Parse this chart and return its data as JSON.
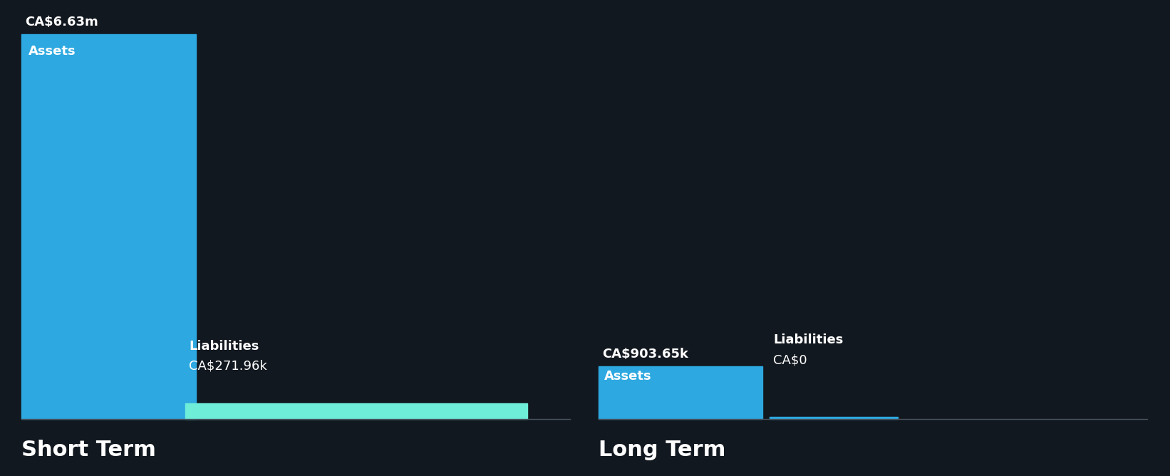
{
  "background_color": "#12181f",
  "short_term": {
    "assets_value": 6630000,
    "assets_label": "CA$6.63m",
    "assets_bar_label": "Assets",
    "assets_color": "#2da8e0",
    "liabilities_value": 271960,
    "liabilities_label": "CA$271.96k",
    "liabilities_bar_label": "Liabilities",
    "liabilities_color": "#6eedd8",
    "section_title": "Short Term"
  },
  "long_term": {
    "assets_value": 903650,
    "assets_label": "CA$903.65k",
    "assets_bar_label": "Assets",
    "assets_color": "#2da8e0",
    "liabilities_value": 0,
    "liabilities_label": "CA$0",
    "liabilities_bar_label": "Liabilities",
    "liabilities_color": "#2da8e0",
    "section_title": "Long Term"
  },
  "text_color": "#ffffff",
  "label_fontsize": 13,
  "value_fontsize": 13,
  "section_title_fontsize": 22,
  "separator_color": "#4a5560"
}
